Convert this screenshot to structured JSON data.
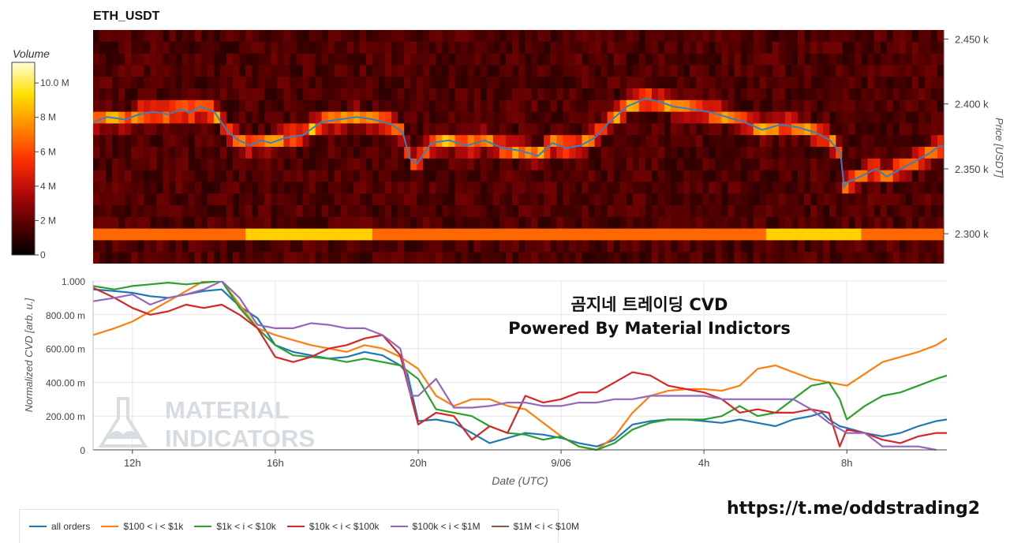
{
  "chart_data": [
    {
      "type": "heatmap",
      "title": "ETH_USDT",
      "colorbar": {
        "title": "Volume",
        "ticks": [
          "10.0 M",
          "8 M",
          "6 M",
          "4 M",
          "2 M",
          "0"
        ],
        "tick_values": [
          10,
          8,
          6,
          4,
          2,
          0
        ],
        "range": [
          0,
          11.2
        ],
        "colors": [
          "#000000",
          "#5a0000",
          "#b80a0a",
          "#ff3300",
          "#ff8a00",
          "#ffe000",
          "#ffffd8"
        ]
      },
      "ylabel": "Price [USDT]",
      "yticks": [
        "2.450 k",
        "2.400 k",
        "2.350 k",
        "2.300 k"
      ],
      "ytick_values": [
        2450,
        2400,
        2350,
        2300
      ],
      "ylim": [
        2277,
        2457
      ],
      "price_line": {
        "color": "#3a7fc0",
        "x_hours": [
          10.9,
          11.3,
          11.8,
          12.2,
          12.6,
          13.0,
          13.4,
          13.6,
          13.9,
          14.3,
          14.7,
          15.0,
          15.3,
          15.6,
          15.9,
          16.3,
          16.8,
          17.3,
          17.8,
          18.3,
          18.8,
          19.3,
          19.6,
          19.8,
          20.0,
          20.4,
          20.9,
          21.4,
          21.9,
          22.4,
          22.9,
          23.4,
          23.8,
          24.2,
          24.6,
          25.0,
          25.4,
          25.9,
          26.4,
          26.8,
          27.2,
          27.7,
          28.2,
          28.7,
          29.2,
          29.7,
          30.2,
          30.7,
          31.2,
          31.6,
          31.9,
          32.0,
          32.1,
          32.3,
          32.6,
          32.9,
          33.2,
          33.6,
          34.0,
          34.4,
          34.7,
          35.0
        ],
        "prices": [
          2386,
          2390,
          2388,
          2392,
          2394,
          2392,
          2396,
          2393,
          2398,
          2394,
          2378,
          2372,
          2368,
          2372,
          2370,
          2374,
          2376,
          2386,
          2388,
          2390,
          2388,
          2384,
          2378,
          2358,
          2354,
          2370,
          2372,
          2368,
          2372,
          2366,
          2364,
          2360,
          2370,
          2366,
          2368,
          2374,
          2386,
          2398,
          2404,
          2402,
          2398,
          2396,
          2394,
          2390,
          2386,
          2380,
          2384,
          2382,
          2378,
          2372,
          2362,
          2336,
          2340,
          2342,
          2346,
          2350,
          2344,
          2350,
          2356,
          2362,
          2368,
          2366
        ]
      }
    },
    {
      "type": "line",
      "ylabel": "Normalized CVD [arb. u.]",
      "xlabel": "Date (UTC)",
      "x_ticks": [
        "12h",
        "16h",
        "20h",
        "9/06",
        "4h",
        "8h"
      ],
      "x_tick_hours": [
        12,
        16,
        20,
        24,
        28,
        32
      ],
      "xlim_hours": [
        10.9,
        34.8
      ],
      "yticks": [
        "1.000",
        "800.00 m",
        "600.00 m",
        "400.00 m",
        "200.00 m",
        "0"
      ],
      "ytick_values": [
        1,
        0.8,
        0.6,
        0.4,
        0.2,
        0
      ],
      "ylim": [
        0,
        1
      ],
      "legend_position": "bottom-left",
      "series": [
        {
          "name": "all orders",
          "color": "#1f77b4",
          "x": [
            10.9,
            11.5,
            12.0,
            12.5,
            13.0,
            13.5,
            14.0,
            14.5,
            15.0,
            15.5,
            16.0,
            16.5,
            17.0,
            17.5,
            18.0,
            18.5,
            19.0,
            19.5,
            19.7,
            20.0,
            20.5,
            21.0,
            21.5,
            22.0,
            22.5,
            23.0,
            23.5,
            24.0,
            24.5,
            25.0,
            25.5,
            26.0,
            26.5,
            27.0,
            27.5,
            28.0,
            28.5,
            29.0,
            29.5,
            30.0,
            30.5,
            31.0,
            31.3,
            31.5,
            31.8,
            32.0,
            32.5,
            33.0,
            33.5,
            34.0,
            34.5,
            34.8
          ],
          "y": [
            0.95,
            0.94,
            0.93,
            0.91,
            0.9,
            0.92,
            0.94,
            0.95,
            0.85,
            0.78,
            0.62,
            0.58,
            0.56,
            0.54,
            0.55,
            0.58,
            0.56,
            0.5,
            0.45,
            0.17,
            0.18,
            0.16,
            0.1,
            0.04,
            0.07,
            0.1,
            0.09,
            0.07,
            0.04,
            0.02,
            0.06,
            0.15,
            0.17,
            0.18,
            0.18,
            0.17,
            0.16,
            0.18,
            0.16,
            0.14,
            0.18,
            0.2,
            0.22,
            0.18,
            0.14,
            0.13,
            0.1,
            0.08,
            0.1,
            0.14,
            0.17,
            0.18
          ]
        },
        {
          "name": "$100 < i < $1k",
          "color": "#ff7f0e",
          "x": [
            10.9,
            11.5,
            12.0,
            12.5,
            13.0,
            13.5,
            14.0,
            14.5,
            15.0,
            15.5,
            16.0,
            16.5,
            17.0,
            17.5,
            18.0,
            18.5,
            19.0,
            19.5,
            20.0,
            20.5,
            21.0,
            21.5,
            22.0,
            22.5,
            23.0,
            23.5,
            24.0,
            24.5,
            25.0,
            25.5,
            26.0,
            26.5,
            27.0,
            27.5,
            28.0,
            28.5,
            29.0,
            29.5,
            30.0,
            30.5,
            31.0,
            31.5,
            32.0,
            32.5,
            33.0,
            33.5,
            34.0,
            34.5,
            34.8
          ],
          "y": [
            0.68,
            0.72,
            0.76,
            0.82,
            0.88,
            0.94,
            1.0,
            1.0,
            0.86,
            0.72,
            0.68,
            0.65,
            0.62,
            0.6,
            0.58,
            0.62,
            0.6,
            0.55,
            0.48,
            0.32,
            0.26,
            0.3,
            0.3,
            0.26,
            0.24,
            0.16,
            0.08,
            0.02,
            0.0,
            0.08,
            0.22,
            0.32,
            0.35,
            0.36,
            0.36,
            0.35,
            0.38,
            0.48,
            0.5,
            0.46,
            0.42,
            0.4,
            0.38,
            0.45,
            0.52,
            0.55,
            0.58,
            0.62,
            0.66
          ]
        },
        {
          "name": "$1k < i < $10k",
          "color": "#2ca02c",
          "x": [
            10.9,
            11.5,
            12.0,
            12.5,
            13.0,
            13.5,
            14.0,
            14.5,
            15.0,
            15.5,
            16.0,
            16.5,
            17.0,
            17.5,
            18.0,
            18.5,
            19.0,
            19.5,
            20.0,
            20.5,
            21.0,
            21.5,
            22.0,
            22.5,
            23.0,
            23.5,
            24.0,
            24.5,
            25.0,
            25.5,
            26.0,
            26.5,
            27.0,
            27.5,
            28.0,
            28.5,
            29.0,
            29.5,
            30.0,
            30.5,
            31.0,
            31.5,
            31.8,
            32.0,
            32.5,
            33.0,
            33.5,
            34.0,
            34.5,
            34.8
          ],
          "y": [
            0.97,
            0.95,
            0.97,
            0.98,
            0.99,
            0.98,
            0.99,
            1.0,
            0.84,
            0.72,
            0.62,
            0.56,
            0.55,
            0.54,
            0.52,
            0.54,
            0.52,
            0.5,
            0.42,
            0.24,
            0.22,
            0.2,
            0.14,
            0.1,
            0.09,
            0.06,
            0.08,
            0.02,
            0.0,
            0.04,
            0.12,
            0.16,
            0.18,
            0.18,
            0.18,
            0.2,
            0.26,
            0.2,
            0.22,
            0.3,
            0.38,
            0.4,
            0.3,
            0.18,
            0.26,
            0.32,
            0.34,
            0.38,
            0.42,
            0.44
          ]
        },
        {
          "name": "$10k < i < $100k",
          "color": "#d62728",
          "x": [
            10.9,
            11.5,
            12.0,
            12.5,
            13.0,
            13.5,
            14.0,
            14.5,
            15.0,
            15.5,
            16.0,
            16.5,
            17.0,
            17.5,
            18.0,
            18.5,
            19.0,
            19.5,
            20.0,
            20.5,
            21.0,
            21.5,
            22.0,
            22.5,
            23.0,
            23.5,
            24.0,
            24.5,
            25.0,
            25.5,
            26.0,
            26.5,
            27.0,
            27.5,
            28.0,
            28.5,
            29.0,
            29.5,
            30.0,
            30.5,
            31.0,
            31.5,
            31.8,
            32.0,
            32.5,
            33.0,
            33.5,
            34.0,
            34.5,
            34.8
          ],
          "y": [
            0.96,
            0.9,
            0.84,
            0.8,
            0.82,
            0.86,
            0.84,
            0.86,
            0.8,
            0.72,
            0.55,
            0.52,
            0.55,
            0.6,
            0.62,
            0.66,
            0.68,
            0.56,
            0.15,
            0.22,
            0.2,
            0.06,
            0.14,
            0.1,
            0.32,
            0.28,
            0.3,
            0.34,
            0.34,
            0.4,
            0.46,
            0.44,
            0.38,
            0.36,
            0.34,
            0.3,
            0.22,
            0.24,
            0.22,
            0.22,
            0.24,
            0.22,
            0.02,
            0.12,
            0.1,
            0.06,
            0.04,
            0.08,
            0.1,
            0.1
          ]
        },
        {
          "name": "$100k < i < $1M",
          "color": "#9467bd",
          "x": [
            10.9,
            11.5,
            12.0,
            12.5,
            13.0,
            13.5,
            14.0,
            14.5,
            15.0,
            15.5,
            16.0,
            16.5,
            17.0,
            17.5,
            18.0,
            18.5,
            19.0,
            19.5,
            19.8,
            20.0,
            20.5,
            21.0,
            21.5,
            22.0,
            22.5,
            23.0,
            23.5,
            24.0,
            24.5,
            25.0,
            25.5,
            26.0,
            26.5,
            27.0,
            27.5,
            28.0,
            28.5,
            29.0,
            29.5,
            30.0,
            30.5,
            31.0,
            31.5,
            32.0,
            32.5,
            33.0,
            33.5,
            34.0,
            34.5
          ],
          "y": [
            0.88,
            0.9,
            0.92,
            0.86,
            0.9,
            0.92,
            0.95,
            1.0,
            0.9,
            0.74,
            0.72,
            0.72,
            0.75,
            0.74,
            0.72,
            0.72,
            0.68,
            0.6,
            0.32,
            0.32,
            0.42,
            0.25,
            0.25,
            0.26,
            0.28,
            0.28,
            0.26,
            0.26,
            0.28,
            0.28,
            0.3,
            0.3,
            0.32,
            0.32,
            0.32,
            0.32,
            0.3,
            0.3,
            0.3,
            0.3,
            0.3,
            0.24,
            0.16,
            0.1,
            0.1,
            0.02,
            0.02,
            0.02,
            0.0
          ]
        },
        {
          "name": "$1M < i < $10M",
          "color": "#8c564b",
          "x": [],
          "y": []
        }
      ]
    }
  ],
  "overlay": {
    "line1": "곰지네 트레이딩 CVD",
    "line2": "Powered By Material Indictors"
  },
  "watermark": {
    "line1": "MATERIAL",
    "line2": "INDICATORS"
  },
  "footer_link": "https://t.me/oddstrading2"
}
